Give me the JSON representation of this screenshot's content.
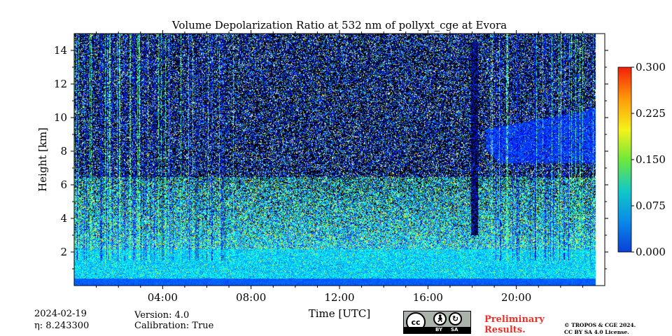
{
  "chart_data": {
    "type": "heatmap",
    "title": "Volume Depolarization Ratio at 532 nm of pollyxt_cge at Evora",
    "xlabel": "Time [UTC]",
    "ylabel": "Height [km]",
    "xlim": [
      "00:00",
      "24:00"
    ],
    "x_ticks": [
      "04:00",
      "08:00",
      "12:00",
      "16:00",
      "20:00"
    ],
    "ylim": [
      0,
      15
    ],
    "y_ticks": [
      "2",
      "4",
      "6",
      "8",
      "10",
      "12",
      "14"
    ],
    "colorbar": {
      "min": 0.0,
      "max": 0.3,
      "ticks": [
        "0.000",
        "0.075",
        "0.150",
        "0.225",
        "0.300"
      ],
      "colormap": "jet"
    },
    "grid": false
  },
  "info": {
    "date": "2024-02-19",
    "eta": "η: 8.243300",
    "version": "Version: 4.0",
    "calibration": "Calibration: True"
  },
  "footer": {
    "preliminary_line1": "Preliminary",
    "preliminary_line2": "Results.",
    "copyright_line1": "© TROPOS & CGE 2024.",
    "copyright_line2": "CC BY SA 4.0 License.",
    "license_badge": {
      "cc": "cc",
      "by": "BY",
      "sa": "SA"
    }
  },
  "colors": {
    "preliminary": "#e8322b"
  }
}
